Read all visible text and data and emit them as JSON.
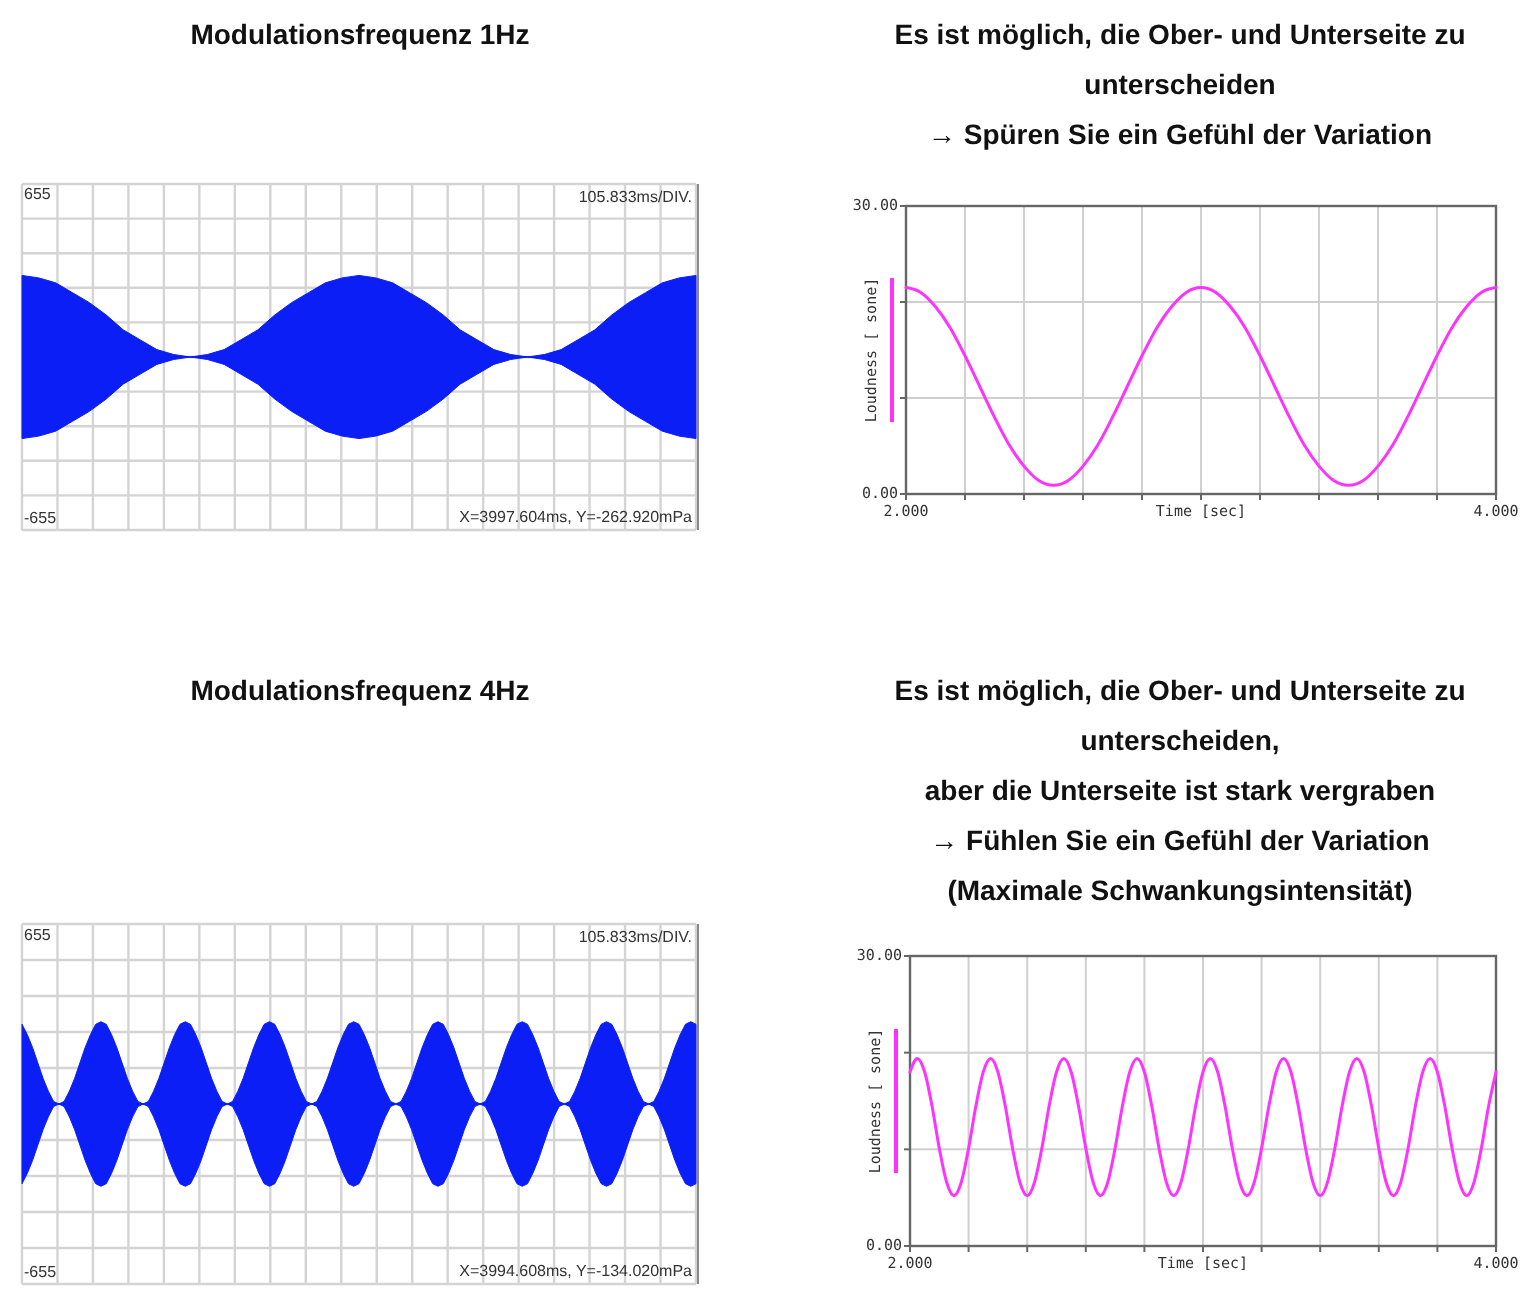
{
  "chart_data": [
    {
      "type": "area",
      "title": "Modulationsfrequenz 1Hz",
      "categories": [
        null,
        null,
        null,
        null,
        null,
        null,
        null,
        null,
        null,
        null,
        null,
        null,
        null,
        null,
        null,
        null,
        null,
        null,
        null,
        null,
        null,
        null,
        null,
        null,
        null,
        null,
        null,
        null,
        null,
        null,
        null,
        null,
        null,
        null,
        null,
        null,
        null,
        null,
        null,
        null,
        null
      ],
      "series": [
        {
          "color": "#0a1ef5",
          "values": [
            330,
            320,
            300,
            260,
            220,
            170,
            110,
            70,
            30,
            10,
            0,
            10,
            30,
            70,
            110,
            170,
            220,
            260,
            300,
            320,
            330,
            320,
            300,
            260,
            220,
            170,
            110,
            70,
            30,
            10,
            0,
            10,
            30,
            70,
            110,
            170,
            220,
            260,
            300,
            320,
            330
          ]
        },
        {
          "color": "#0a1ef5",
          "values": [
            -330,
            -320,
            -300,
            -260,
            -220,
            -170,
            -110,
            -70,
            -30,
            -10,
            0,
            -10,
            -30,
            -70,
            -110,
            -170,
            -220,
            -260,
            -300,
            -320,
            -330,
            -320,
            -300,
            -260,
            -220,
            -170,
            -110,
            -70,
            -30,
            -10,
            0,
            -10,
            -30,
            -70,
            -110,
            -170,
            -220,
            -260,
            -300,
            -320,
            -330
          ]
        }
      ],
      "ylim": [
        -700,
        700
      ],
      "yticks": [
        {
          "value": 655,
          "label": "655"
        },
        {
          "value": -655,
          "label": "-655"
        }
      ],
      "grid": true,
      "annotations": [
        "105.833ms/DIV.",
        "X=3997.604ms, Y=-262.920mPa"
      ]
    },
    {
      "type": "line",
      "title": "Es ist möglich, die Ober- und Unterseite zu unterscheiden",
      "subtitle": "→ Spüren Sie ein Gefühl der Variation",
      "xlabel": "Time [sec]",
      "ylabel": "Loudness [ sone]",
      "x": [
        2,
        2.05,
        2.1,
        2.15,
        2.2,
        2.25,
        2.3,
        2.35,
        2.4,
        2.45,
        2.5,
        2.55,
        2.6,
        2.65,
        2.7,
        2.75,
        2.8,
        2.85,
        2.9,
        2.95,
        3,
        3.05,
        3.1,
        3.15,
        3.2,
        3.25,
        3.3,
        3.35,
        3.4,
        3.45,
        3.5,
        3.55,
        3.6,
        3.65,
        3.7,
        3.75,
        3.8,
        3.85,
        3.9,
        3.95,
        4
      ],
      "series": [
        {
          "color": "#ff33ff",
          "values": [
            21.5,
            21.0,
            19.5,
            17.3,
            14.4,
            11.2,
            8.0,
            5.1,
            2.9,
            1.4,
            0.9,
            1.4,
            2.9,
            5.1,
            8.0,
            11.2,
            14.4,
            17.3,
            19.5,
            21.0,
            21.5,
            21.0,
            19.5,
            17.3,
            14.4,
            11.2,
            8.0,
            5.1,
            2.9,
            1.4,
            0.9,
            1.4,
            2.9,
            5.1,
            8.0,
            11.2,
            14.4,
            17.3,
            19.5,
            21.0,
            21.5
          ]
        }
      ],
      "xlim": [
        2,
        4
      ],
      "xticks": [
        {
          "value": 2,
          "label": "2.000"
        },
        {
          "value": 2.2,
          "label": null
        },
        {
          "value": 2.4,
          "label": null
        },
        {
          "value": 2.6,
          "label": null
        },
        {
          "value": 2.8,
          "label": null
        },
        {
          "value": 3,
          "label": null
        },
        {
          "value": 3.2,
          "label": null
        },
        {
          "value": 3.4,
          "label": null
        },
        {
          "value": 3.6,
          "label": null
        },
        {
          "value": 3.8,
          "label": null
        },
        {
          "value": 4,
          "label": "4.000"
        }
      ],
      "ylim": [
        0,
        30
      ],
      "yticks": [
        {
          "value": 0,
          "label": "0.00"
        },
        {
          "value": 10,
          "label": null
        },
        {
          "value": 20,
          "label": null
        },
        {
          "value": 30,
          "label": "30.00"
        }
      ],
      "grid": true
    },
    {
      "type": "area",
      "title": "Modulationsfrequenz 4Hz",
      "categories": [
        null,
        null,
        null,
        null,
        null,
        null,
        null,
        null,
        null,
        null,
        null,
        null,
        null,
        null,
        null,
        null,
        null,
        null,
        null,
        null,
        null,
        null,
        null,
        null,
        null,
        null,
        null,
        null,
        null,
        null,
        null,
        null,
        null,
        null,
        null,
        null,
        null,
        null,
        null,
        null,
        null,
        null,
        null,
        null,
        null,
        null,
        null,
        null,
        null,
        null,
        null,
        null,
        null,
        null,
        null,
        null,
        null,
        null,
        null,
        null,
        null,
        null,
        null,
        null,
        null,
        null,
        null,
        null,
        null,
        null,
        null,
        null,
        null,
        null,
        null,
        null,
        null,
        null,
        null,
        null,
        null,
        null,
        null,
        null,
        null,
        null,
        null,
        null,
        null,
        null,
        null,
        null,
        null,
        null,
        null,
        null,
        null,
        null,
        null,
        null,
        null,
        null,
        null,
        null,
        null,
        null,
        null,
        null,
        null,
        null,
        null,
        null,
        null,
        null,
        null,
        null,
        null,
        null,
        null,
        null,
        null,
        null,
        null,
        null,
        null,
        null,
        null,
        null,
        null
      ],
      "series": [
        {
          "color": "#0a1ef5",
          "values": [
            310,
            270,
            220,
            160,
            100,
            50,
            10,
            0,
            10,
            50,
            100,
            160,
            220,
            270,
            310,
            320,
            310,
            270,
            220,
            160,
            100,
            50,
            10,
            0,
            10,
            50,
            100,
            160,
            220,
            270,
            310,
            320,
            310,
            270,
            220,
            160,
            100,
            50,
            10,
            0,
            10,
            50,
            100,
            160,
            220,
            270,
            310,
            320,
            310,
            270,
            220,
            160,
            100,
            50,
            10,
            0,
            10,
            50,
            100,
            160,
            220,
            270,
            310,
            320,
            310,
            270,
            220,
            160,
            100,
            50,
            10,
            0,
            10,
            50,
            100,
            160,
            220,
            270,
            310,
            320,
            310,
            270,
            220,
            160,
            100,
            50,
            10,
            0,
            10,
            50,
            100,
            160,
            220,
            270,
            310,
            320,
            310,
            270,
            220,
            160,
            100,
            50,
            10,
            0,
            10,
            50,
            100,
            160,
            220,
            270,
            310,
            320,
            310,
            270,
            220,
            160,
            100,
            50,
            10,
            0,
            10,
            50,
            100,
            160,
            220,
            270,
            310,
            320,
            310
          ]
        },
        {
          "color": "#0a1ef5",
          "values": [
            -310,
            -270,
            -220,
            -160,
            -100,
            -50,
            -10,
            0,
            -10,
            -50,
            -100,
            -160,
            -220,
            -270,
            -310,
            -320,
            -310,
            -270,
            -220,
            -160,
            -100,
            -50,
            -10,
            0,
            -10,
            -50,
            -100,
            -160,
            -220,
            -270,
            -310,
            -320,
            -310,
            -270,
            -220,
            -160,
            -100,
            -50,
            -10,
            0,
            -10,
            -50,
            -100,
            -160,
            -220,
            -270,
            -310,
            -320,
            -310,
            -270,
            -220,
            -160,
            -100,
            -50,
            -10,
            0,
            -10,
            -50,
            -100,
            -160,
            -220,
            -270,
            -310,
            -320,
            -310,
            -270,
            -220,
            -160,
            -100,
            -50,
            -10,
            0,
            -10,
            -50,
            -100,
            -160,
            -220,
            -270,
            -310,
            -320,
            -310,
            -270,
            -220,
            -160,
            -100,
            -50,
            -10,
            0,
            -10,
            -50,
            -100,
            -160,
            -220,
            -270,
            -310,
            -320,
            -310,
            -270,
            -220,
            -160,
            -100,
            -50,
            -10,
            0,
            -10,
            -50,
            -100,
            -160,
            -220,
            -270,
            -310,
            -320,
            -310,
            -270,
            -220,
            -160,
            -100,
            -50,
            -10,
            0,
            -10,
            -50,
            -100,
            -160,
            -220,
            -270,
            -310,
            -320,
            -310
          ]
        }
      ],
      "ylim": [
        -700,
        700
      ],
      "yticks": [
        {
          "value": 655,
          "label": "655"
        },
        {
          "value": -655,
          "label": "-655"
        }
      ],
      "grid": true,
      "annotations": [
        "105.833ms/DIV.",
        "X=3994.608ms, Y=-134.020mPa"
      ]
    },
    {
      "type": "line",
      "title": "Es ist möglich, die Ober- und Unterseite zu unterscheiden,",
      "subtitle": "aber die Unterseite ist stark vergraben\n→ Fühlen Sie ein Gefühl der Variation\n(Maximale Schwankungsintensität)",
      "xlabel": "Time [sec]",
      "ylabel": "Loudness [ sone]",
      "x": [
        2,
        2.025,
        2.05,
        2.075,
        2.1,
        2.125,
        2.15,
        2.175,
        2.2,
        2.225,
        2.25,
        2.275,
        2.3,
        2.325,
        2.35,
        2.375,
        2.4,
        2.425,
        2.45,
        2.475,
        2.5,
        2.525,
        2.55,
        2.575,
        2.6,
        2.625,
        2.65,
        2.675,
        2.7,
        2.725,
        2.75,
        2.775,
        2.8,
        2.825,
        2.85,
        2.875,
        2.9,
        2.925,
        2.95,
        2.975,
        3,
        3.025,
        3.05,
        3.075,
        3.1,
        3.125,
        3.15,
        3.175,
        3.2,
        3.225,
        3.25,
        3.275,
        3.3,
        3.325,
        3.35,
        3.375,
        3.4,
        3.425,
        3.45,
        3.475,
        3.5,
        3.525,
        3.55,
        3.575,
        3.6,
        3.625,
        3.65,
        3.675,
        3.7,
        3.725,
        3.75,
        3.775,
        3.8,
        3.825,
        3.85,
        3.875,
        3.9,
        3.925,
        3.95,
        3.975,
        4
      ],
      "series": [
        {
          "color": "#ff33ff",
          "values": [
            18.0,
            19.4,
            18.0,
            14.5,
            10.1,
            6.6,
            5.2,
            6.6,
            10.1,
            14.5,
            18.0,
            19.4,
            18.0,
            14.5,
            10.1,
            6.6,
            5.2,
            6.6,
            10.1,
            14.5,
            18.0,
            19.4,
            18.0,
            14.5,
            10.1,
            6.6,
            5.2,
            6.6,
            10.1,
            14.5,
            18.0,
            19.4,
            18.0,
            14.5,
            10.1,
            6.6,
            5.2,
            6.6,
            10.1,
            14.5,
            18.0,
            19.4,
            18.0,
            14.5,
            10.1,
            6.6,
            5.2,
            6.6,
            10.1,
            14.5,
            18.0,
            19.4,
            18.0,
            14.5,
            10.1,
            6.6,
            5.2,
            6.6,
            10.1,
            14.5,
            18.0,
            19.4,
            18.0,
            14.5,
            10.1,
            6.6,
            5.2,
            6.6,
            10.1,
            14.5,
            18.0,
            19.4,
            18.0,
            14.5,
            10.1,
            6.6,
            5.2,
            6.6,
            10.1,
            14.5,
            18.0
          ]
        }
      ],
      "xlim": [
        2,
        4
      ],
      "xticks": [
        {
          "value": 2,
          "label": "2.000"
        },
        {
          "value": 2.2,
          "label": null
        },
        {
          "value": 2.4,
          "label": null
        },
        {
          "value": 2.6,
          "label": null
        },
        {
          "value": 2.8,
          "label": null
        },
        {
          "value": 3,
          "label": null
        },
        {
          "value": 3.2,
          "label": null
        },
        {
          "value": 3.4,
          "label": null
        },
        {
          "value": 3.6,
          "label": null
        },
        {
          "value": 3.8,
          "label": null
        },
        {
          "value": 4,
          "label": "4.000"
        }
      ],
      "ylim": [
        0,
        30
      ],
      "yticks": [
        {
          "value": 0,
          "label": "0.00"
        },
        {
          "value": 10,
          "label": null
        },
        {
          "value": 20,
          "label": null
        },
        {
          "value": 30,
          "label": "30.00"
        }
      ],
      "grid": true
    }
  ]
}
